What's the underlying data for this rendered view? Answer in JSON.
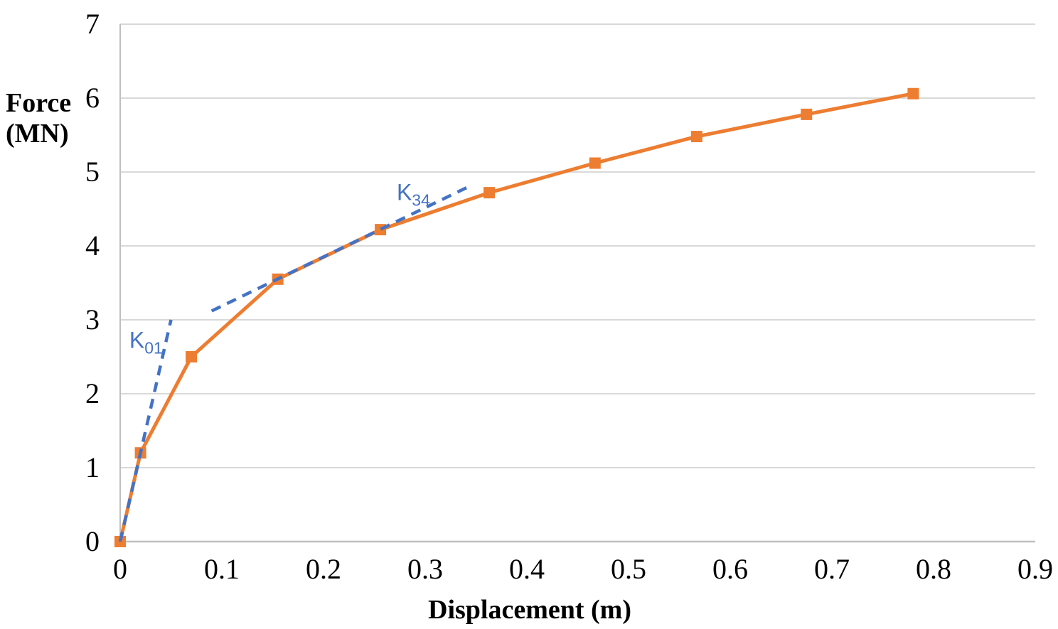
{
  "chart_data": {
    "type": "line",
    "title": "",
    "xlabel": "Displacement (m)",
    "ylabel": "Force (MN)",
    "ylabel_lines": [
      "Force",
      "(MN)"
    ],
    "xlim": [
      0,
      0.9
    ],
    "ylim": [
      0,
      7
    ],
    "xtick_values": [
      0,
      0.1,
      0.2,
      0.3,
      0.4,
      0.5,
      0.6,
      0.7,
      0.8,
      0.9
    ],
    "xtick_labels": [
      "0",
      "0.1",
      "0.2",
      "0.3",
      "0.4",
      "0.5",
      "0.6",
      "0.7",
      "0.8",
      "0.9"
    ],
    "ytick_values": [
      0,
      1,
      2,
      3,
      4,
      5,
      6,
      7
    ],
    "ytick_labels": [
      "0",
      "1",
      "2",
      "3",
      "4",
      "5",
      "6",
      "7"
    ],
    "grid": "horizontal",
    "legend": "none",
    "series": [
      {
        "name": "force-displacement-curve",
        "marker": "square",
        "color": "#ED7D31",
        "points": [
          [
            0,
            0
          ],
          [
            0.02,
            1.2
          ],
          [
            0.07,
            2.5
          ],
          [
            0.155,
            3.55
          ],
          [
            0.256,
            4.22
          ],
          [
            0.363,
            4.72
          ],
          [
            0.467,
            5.12
          ],
          [
            0.567,
            5.48
          ],
          [
            0.675,
            5.78
          ],
          [
            0.78,
            6.06
          ]
        ]
      }
    ],
    "guide_lines": [
      {
        "name": "K01-secant-stiffness-line",
        "style": "dashed",
        "color": "#4472C4",
        "from": [
          0,
          0
        ],
        "to": [
          0.05,
          3.0
        ]
      },
      {
        "name": "K34-secant-stiffness-line",
        "style": "dashed",
        "color": "#4472C4",
        "from": [
          0.09,
          3.12
        ],
        "to": [
          0.341,
          4.79
        ]
      }
    ],
    "annotations": [
      {
        "text": "K",
        "sub": "01",
        "x": 0.009,
        "y": 2.62,
        "color": "#4472C4"
      },
      {
        "text": "K",
        "sub": "34",
        "x": 0.272,
        "y": 4.62,
        "color": "#4472C4"
      }
    ],
    "colors": {
      "series": "#ED7D31",
      "guide": "#4472C4",
      "gridline": "#D9D9D9",
      "axis": "#BFBFBF",
      "text": "#000000"
    }
  }
}
